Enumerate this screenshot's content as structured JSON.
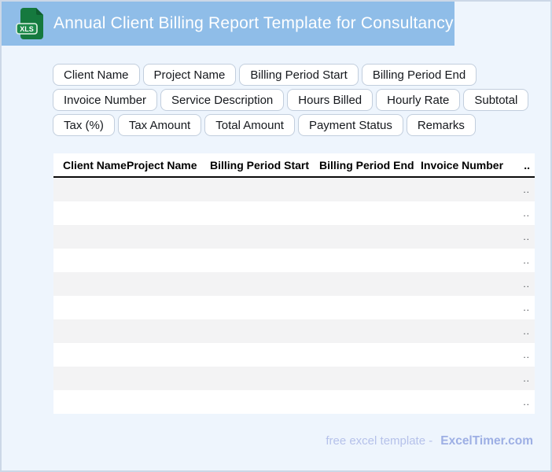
{
  "header": {
    "title": "Annual Client Billing Report Template for Consultancy",
    "file_badge": "XLS"
  },
  "chips": {
    "rows": [
      [
        "Client Name",
        "Project Name",
        "Billing Period Start",
        "Billing Period End"
      ],
      [
        "Invoice Number",
        "Service Description",
        "Hours Billed",
        "Hourly Rate",
        "Subtotal"
      ],
      [
        "Tax (%)",
        "Tax Amount",
        "Total Amount",
        "Payment Status",
        "Remarks"
      ]
    ]
  },
  "table": {
    "columns": [
      "Client Name",
      "Project Name",
      "Billing Period Start",
      "Billing Period End",
      "Invoice Number",
      ".."
    ],
    "row_count": 10,
    "row_placeholder": ".."
  },
  "footer": {
    "prefix": "free excel template -",
    "brand": "ExcelTimer.com"
  },
  "colors": {
    "titlebar_bg": "#8fbde8",
    "page_bg": "#eef5fd",
    "page_border": "#ccd8e7",
    "icon_green": "#15793e",
    "icon_badge_green": "#1d8a4a",
    "row_stripe": "#f3f3f4",
    "footer_text": "#b5c1ea",
    "footer_brand": "#9dafe4"
  }
}
